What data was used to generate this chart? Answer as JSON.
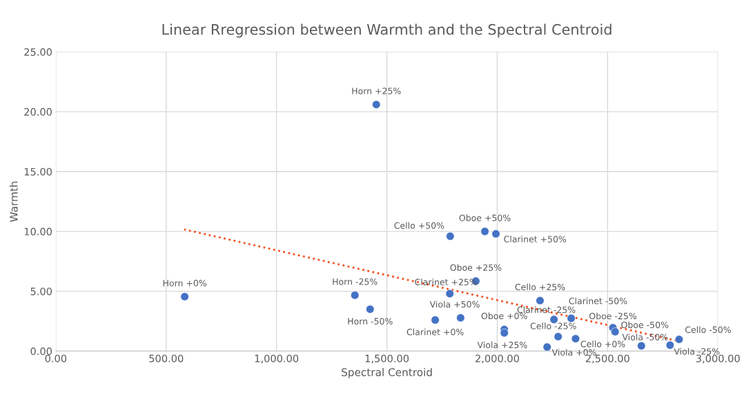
{
  "chart_data": {
    "type": "scatter",
    "title": "Linear Rregression between Warmth and the Spectral Centroid",
    "xlabel": "Spectral Centroid",
    "ylabel": "Warmth",
    "series": [
      {
        "color": "#4472c4",
        "marker": "circle",
        "x": [
          1452,
          1787,
          1944,
          1994,
          584,
          1355,
          1785,
          1903,
          1424,
          1719,
          1834,
          2032,
          2032,
          2194,
          2257,
          2276,
          2355,
          2226,
          2335,
          2524,
          2534,
          2653,
          2783,
          2824
        ],
        "values": [
          20.6,
          9.6,
          10.0,
          9.8,
          4.55,
          4.67,
          4.8,
          5.85,
          3.5,
          2.6,
          2.78,
          1.81,
          1.52,
          4.22,
          2.64,
          1.21,
          1.04,
          0.34,
          2.74,
          1.96,
          1.62,
          0.44,
          0.5,
          0.98
        ]
      },
      {
        "type": "line",
        "color": "#f4511e",
        "line_style": "dotted",
        "marker": "none",
        "x": [
          581,
          2818
        ],
        "values": [
          10.17,
          0.85
        ]
      }
    ],
    "annotations": [
      {
        "text": "Horn +25%",
        "x": 1452,
        "y": 20.6
      },
      {
        "text": "Cello +50%",
        "x": 1787,
        "y": 9.6
      },
      {
        "text": "Oboe +50%",
        "x": 1944,
        "y": 10.0
      },
      {
        "text": "Clarinet +50%",
        "x": 1994,
        "y": 9.8
      },
      {
        "text": "Horn +0%",
        "x": 584,
        "y": 4.55
      },
      {
        "text": "Horn -25%",
        "x": 1355,
        "y": 4.67
      },
      {
        "text": "Clarinet +25%",
        "x": 1785,
        "y": 4.8
      },
      {
        "text": "Oboe +25%",
        "x": 1903,
        "y": 5.85
      },
      {
        "text": "Horn -50%",
        "x": 1424,
        "y": 3.5
      },
      {
        "text": "Clarinet +0%",
        "x": 1719,
        "y": 2.6
      },
      {
        "text": "Viola +50%",
        "x": 1834,
        "y": 2.78
      },
      {
        "text": "Oboe +0%",
        "x": 2032,
        "y": 1.81
      },
      {
        "text": "Viola +25%",
        "x": 2032,
        "y": 1.52
      },
      {
        "text": "Cello +25%",
        "x": 2194,
        "y": 4.22
      },
      {
        "text": "Clarinet -25%",
        "x": 2257,
        "y": 2.64
      },
      {
        "text": "Cello -25%",
        "x": 2276,
        "y": 1.21
      },
      {
        "text": "Cello +0%",
        "x": 2355,
        "y": 1.04
      },
      {
        "text": "Viola +0%",
        "x": 2226,
        "y": 0.34
      },
      {
        "text": "Clarinet -50%",
        "x": 2335,
        "y": 2.74
      },
      {
        "text": "Oboe -25%",
        "x": 2524,
        "y": 1.96
      },
      {
        "text": "Oboe -50%",
        "x": 2534,
        "y": 1.62
      },
      {
        "text": "Viola -50%",
        "x": 2653,
        "y": 0.44
      },
      {
        "text": "Viola -25%",
        "x": 2783,
        "y": 0.5
      },
      {
        "text": "Cello -50%",
        "x": 2824,
        "y": 0.98
      }
    ],
    "xlim": [
      0,
      3000
    ],
    "ylim": [
      0,
      25
    ],
    "xticks": [
      {
        "value": 0,
        "label": "0.00"
      },
      {
        "value": 500,
        "label": "500.00"
      },
      {
        "value": 1000,
        "label": "1,000.00"
      },
      {
        "value": 1500,
        "label": "1,500.00"
      },
      {
        "value": 2000,
        "label": "2,000.00"
      },
      {
        "value": 2500,
        "label": "2,500.00"
      },
      {
        "value": 3000,
        "label": "3,000.00"
      }
    ],
    "yticks": [
      {
        "value": 0,
        "label": "0.00"
      },
      {
        "value": 5,
        "label": "5.00"
      },
      {
        "value": 10,
        "label": "10.00"
      },
      {
        "value": 15,
        "label": "15.00"
      },
      {
        "value": 20,
        "label": "20.00"
      },
      {
        "value": 25,
        "label": "25.00"
      }
    ],
    "grid": true
  }
}
